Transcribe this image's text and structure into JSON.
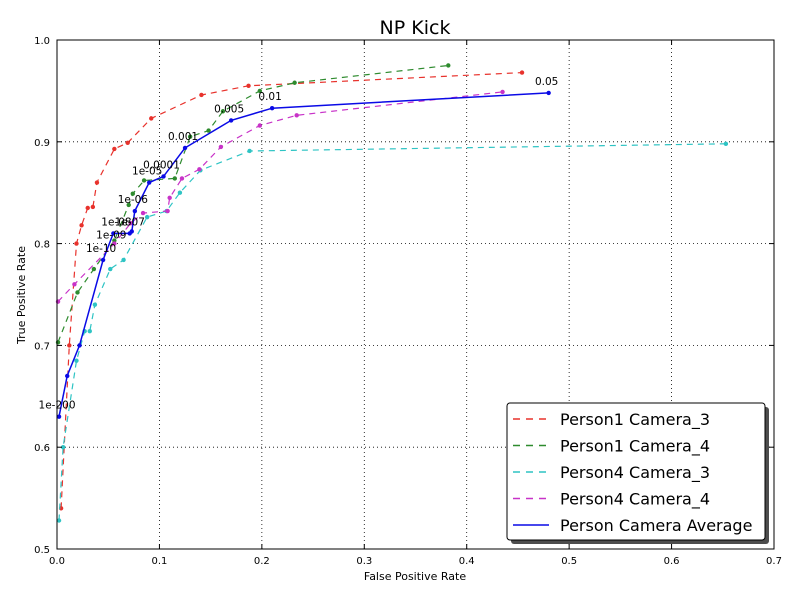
{
  "chart_data": {
    "type": "line",
    "title": "NP Kick",
    "xlabel": "False Positive Rate",
    "ylabel": "True Positive Rate",
    "xlim": [
      0,
      0.7
    ],
    "ylim": [
      0.5,
      1.0
    ],
    "x_ticks": [
      "0.0",
      "0.1",
      "0.2",
      "0.3",
      "0.4",
      "0.5",
      "0.6",
      "0.7"
    ],
    "y_ticks": [
      "0.5",
      "0.6",
      "0.7",
      "0.8",
      "0.9",
      "1.0"
    ],
    "grid": true,
    "legend_position": "bottom-right",
    "series": [
      {
        "name": "Person1 Camera_3",
        "color": "#e8322c",
        "style": "dashed",
        "points": [
          [
            0.004,
            0.54
          ],
          [
            0.012,
            0.7
          ],
          [
            0.019,
            0.8
          ],
          [
            0.024,
            0.818
          ],
          [
            0.03,
            0.835
          ],
          [
            0.035,
            0.836
          ],
          [
            0.039,
            0.86
          ],
          [
            0.056,
            0.893
          ],
          [
            0.069,
            0.899
          ],
          [
            0.092,
            0.923
          ],
          [
            0.141,
            0.946
          ],
          [
            0.187,
            0.955
          ],
          [
            0.454,
            0.968
          ]
        ]
      },
      {
        "name": "Person1 Camera_4",
        "color": "#2e8b2e",
        "style": "dashed",
        "points": [
          [
            0.001,
            0.703
          ],
          [
            0.02,
            0.752
          ],
          [
            0.036,
            0.775
          ],
          [
            0.056,
            0.803
          ],
          [
            0.07,
            0.838
          ],
          [
            0.074,
            0.849
          ],
          [
            0.085,
            0.862
          ],
          [
            0.115,
            0.864
          ],
          [
            0.13,
            0.905
          ],
          [
            0.148,
            0.911
          ],
          [
            0.162,
            0.93
          ],
          [
            0.198,
            0.95
          ],
          [
            0.232,
            0.958
          ],
          [
            0.382,
            0.975
          ]
        ]
      },
      {
        "name": "Person4 Camera_3",
        "color": "#2ec4c4",
        "style": "dashed",
        "points": [
          [
            0.002,
            0.528
          ],
          [
            0.006,
            0.6
          ],
          [
            0.019,
            0.685
          ],
          [
            0.027,
            0.714
          ],
          [
            0.032,
            0.714
          ],
          [
            0.037,
            0.74
          ],
          [
            0.052,
            0.775
          ],
          [
            0.065,
            0.784
          ],
          [
            0.088,
            0.826
          ],
          [
            0.107,
            0.832
          ],
          [
            0.12,
            0.85
          ],
          [
            0.14,
            0.872
          ],
          [
            0.188,
            0.891
          ],
          [
            0.653,
            0.898
          ]
        ]
      },
      {
        "name": "Person4 Camera_4",
        "color": "#c832c8",
        "style": "dashed",
        "points": [
          [
            0.001,
            0.743
          ],
          [
            0.017,
            0.76
          ],
          [
            0.056,
            0.8
          ],
          [
            0.072,
            0.82
          ],
          [
            0.084,
            0.83
          ],
          [
            0.108,
            0.832
          ],
          [
            0.11,
            0.845
          ],
          [
            0.122,
            0.864
          ],
          [
            0.139,
            0.873
          ],
          [
            0.16,
            0.895
          ],
          [
            0.198,
            0.916
          ],
          [
            0.234,
            0.926
          ],
          [
            0.435,
            0.949
          ]
        ]
      },
      {
        "name": "Person Camera Average",
        "color": "#0a0ae6",
        "style": "solid",
        "points": [
          [
            0.002,
            0.63
          ],
          [
            0.01,
            0.67
          ],
          [
            0.022,
            0.7
          ],
          [
            0.045,
            0.784
          ],
          [
            0.055,
            0.81
          ],
          [
            0.071,
            0.81
          ],
          [
            0.073,
            0.812
          ],
          [
            0.076,
            0.832
          ],
          [
            0.09,
            0.86
          ],
          [
            0.104,
            0.866
          ],
          [
            0.125,
            0.894
          ],
          [
            0.17,
            0.921
          ],
          [
            0.21,
            0.933
          ],
          [
            0.48,
            0.948
          ]
        ]
      }
    ],
    "annotations": [
      {
        "text": "1e-200",
        "x": 0.002,
        "y": 0.63
      },
      {
        "text": "1e-10",
        "x": 0.045,
        "y": 0.784
      },
      {
        "text": "1e-09",
        "x": 0.055,
        "y": 0.797
      },
      {
        "text": "1e-08",
        "x": 0.06,
        "y": 0.81
      },
      {
        "text": "1e-07",
        "x": 0.073,
        "y": 0.81
      },
      {
        "text": "1e-06",
        "x": 0.076,
        "y": 0.832
      },
      {
        "text": "1e-05",
        "x": 0.09,
        "y": 0.86
      },
      {
        "text": "0.0001",
        "x": 0.104,
        "y": 0.866
      },
      {
        "text": "0.001",
        "x": 0.125,
        "y": 0.894
      },
      {
        "text": "0.005",
        "x": 0.17,
        "y": 0.921
      },
      {
        "text": "0.01",
        "x": 0.21,
        "y": 0.933
      },
      {
        "text": "0.05",
        "x": 0.48,
        "y": 0.948
      }
    ]
  }
}
